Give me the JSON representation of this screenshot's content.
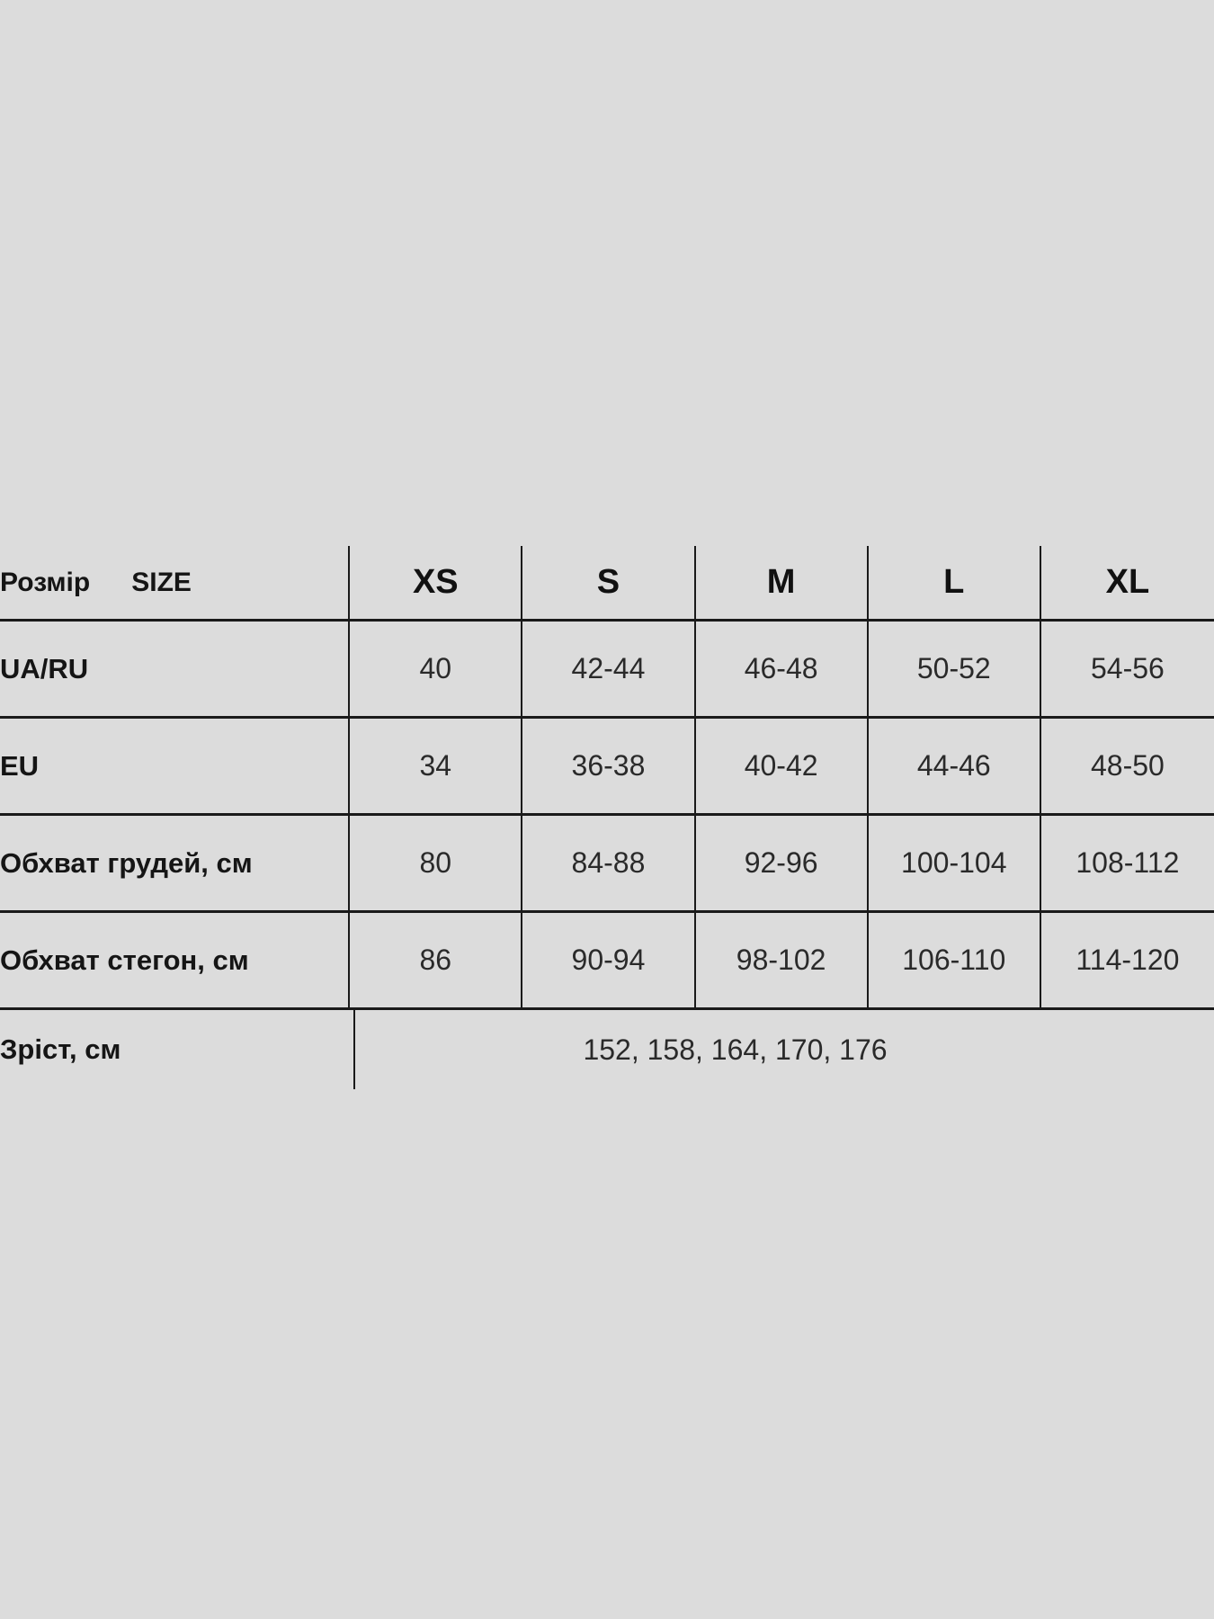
{
  "header": {
    "label_ua": "Розмір",
    "label_en": "SIZE",
    "sizes": [
      "XS",
      "S",
      "M",
      "L",
      "XL"
    ]
  },
  "rows": [
    {
      "label": "UA/RU",
      "values": [
        "40",
        "42-44",
        "46-48",
        "50-52",
        "54-56"
      ]
    },
    {
      "label": "EU",
      "values": [
        "34",
        "36-38",
        "40-42",
        "44-46",
        "48-50"
      ]
    },
    {
      "label": "Обхват грудей, см",
      "values": [
        "80",
        "84-88",
        "92-96",
        "100-104",
        "108-112"
      ]
    },
    {
      "label": "Обхват стегон, см",
      "values": [
        "86",
        "90-94",
        "98-102",
        "106-110",
        "114-120"
      ]
    }
  ],
  "height_row": {
    "label": "Зріст, см",
    "value": "152, 158, 164, 170, 176"
  }
}
